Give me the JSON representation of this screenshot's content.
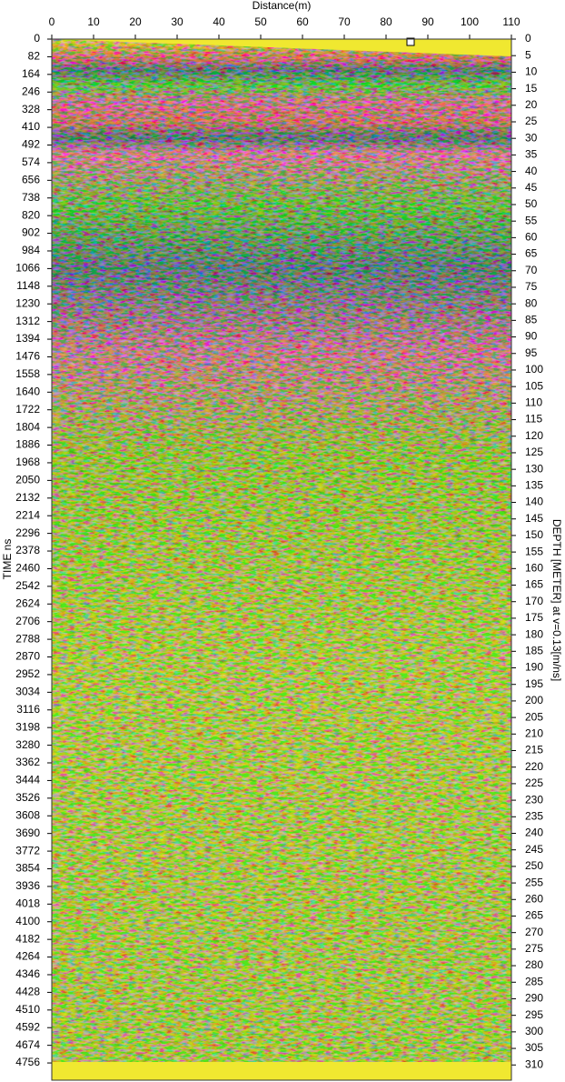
{
  "chart_data": {
    "type": "radargram",
    "xlabel": "Distance(m)",
    "ylabel": "TIME ns",
    "y2label": "DEPTH [METER] at v=0.13[m/ns]",
    "xlim": [
      0,
      110
    ],
    "xticks": [
      0,
      10,
      20,
      30,
      40,
      50,
      60,
      70,
      80,
      90,
      100,
      110
    ],
    "ylim": [
      0,
      4836
    ],
    "yticks": [
      0,
      82,
      164,
      246,
      328,
      410,
      492,
      574,
      656,
      738,
      820,
      902,
      984,
      1066,
      1148,
      1230,
      1312,
      1394,
      1476,
      1558,
      1640,
      1722,
      1804,
      1886,
      1968,
      2050,
      2132,
      2214,
      2296,
      2378,
      2460,
      2542,
      2624,
      2706,
      2788,
      2870,
      2952,
      3034,
      3116,
      3198,
      3280,
      3362,
      3444,
      3526,
      3608,
      3690,
      3772,
      3854,
      3936,
      4018,
      4100,
      4182,
      4264,
      4346,
      4428,
      4510,
      4592,
      4674,
      4756
    ],
    "y2lim": [
      0,
      314.6
    ],
    "y2ticks": [
      0,
      5,
      10,
      15,
      20,
      25,
      30,
      35,
      40,
      45,
      50,
      55,
      60,
      65,
      70,
      75,
      80,
      85,
      90,
      95,
      100,
      105,
      110,
      115,
      120,
      125,
      130,
      135,
      140,
      145,
      150,
      155,
      160,
      165,
      170,
      175,
      180,
      185,
      190,
      195,
      200,
      205,
      210,
      215,
      220,
      225,
      230,
      235,
      240,
      245,
      250,
      255,
      260,
      265,
      270,
      275,
      280,
      285,
      290,
      295,
      300,
      305,
      310
    ]
  }
}
